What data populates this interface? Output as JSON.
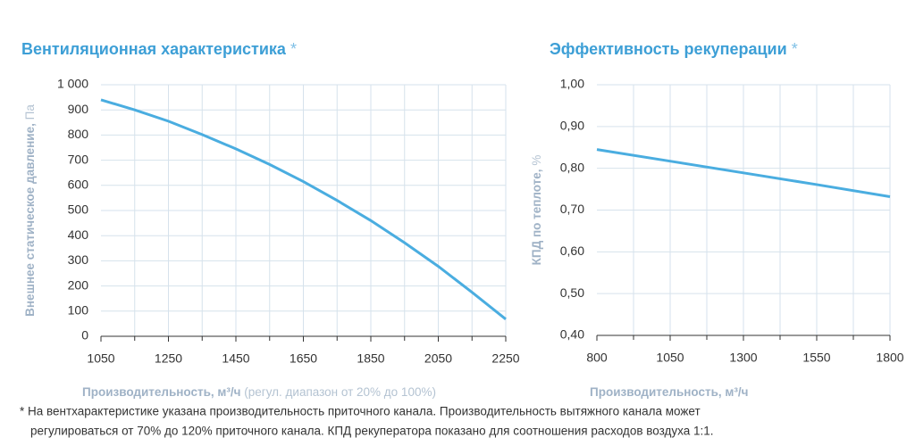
{
  "chart_data": [
    {
      "type": "line",
      "title": "Вентиляционная характеристика",
      "title_mark": "*",
      "x_label": {
        "name": "Производительность,",
        "unit": "м³/ч",
        "note": "(регул. диапазон от 20% до 100%)"
      },
      "y_label": {
        "name": "Внешнее статическое давление,",
        "unit": "Па"
      },
      "x": [
        1050,
        1150,
        1250,
        1350,
        1450,
        1550,
        1650,
        1750,
        1850,
        1950,
        2050,
        2150,
        2250
      ],
      "values": [
        940,
        900,
        855,
        802,
        745,
        683,
        615,
        540,
        460,
        372,
        278,
        175,
        68
      ],
      "color": "#4aade0",
      "xlim": [
        1050,
        2250
      ],
      "xticks": [
        1050,
        1250,
        1450,
        1650,
        1850,
        2050,
        2250
      ],
      "x_minor_ticks": [
        1150,
        1350,
        1550,
        1750,
        1950,
        2150
      ],
      "ylim": [
        0,
        1000
      ],
      "yticks": [
        0,
        100,
        200,
        300,
        400,
        500,
        600,
        700,
        800,
        900,
        {
          "value": 1000,
          "label": "1 000"
        }
      ],
      "grid": true
    },
    {
      "type": "line",
      "title": "Эффективность рекуперации",
      "title_mark": "*",
      "x_label": {
        "name": "Производительность,",
        "unit": "м³/ч"
      },
      "y_label": {
        "name": "КПД по теплоте,",
        "unit": "%"
      },
      "x": [
        800,
        1050,
        1300,
        1550,
        1800
      ],
      "values": [
        0.845,
        0.817,
        0.789,
        0.761,
        0.732
      ],
      "color": "#4aade0",
      "xlim": [
        800,
        1800
      ],
      "xticks": [
        800,
        1050,
        1300,
        1550,
        1800
      ],
      "x_minor_ticks": [
        925,
        1175,
        1425,
        1675
      ],
      "ylim": [
        0.4,
        1.0
      ],
      "yticks": [
        {
          "value": 0.4,
          "label": "0,40"
        },
        {
          "value": 0.5,
          "label": "0,50"
        },
        {
          "value": 0.6,
          "label": "0,60"
        },
        {
          "value": 0.7,
          "label": "0,70"
        },
        {
          "value": 0.8,
          "label": "0,80"
        },
        {
          "value": 0.9,
          "label": "0,90"
        },
        {
          "value": 1.0,
          "label": "1,00"
        }
      ],
      "grid": true
    }
  ],
  "footnote": [
    "* На вентхарактеристике указана производительность приточного канала. Производительность вытяжного канала может",
    "регулироваться от 70% до 120% приточного канала. КПД рекуператора показано для соотношения расходов воздуха 1:1."
  ]
}
